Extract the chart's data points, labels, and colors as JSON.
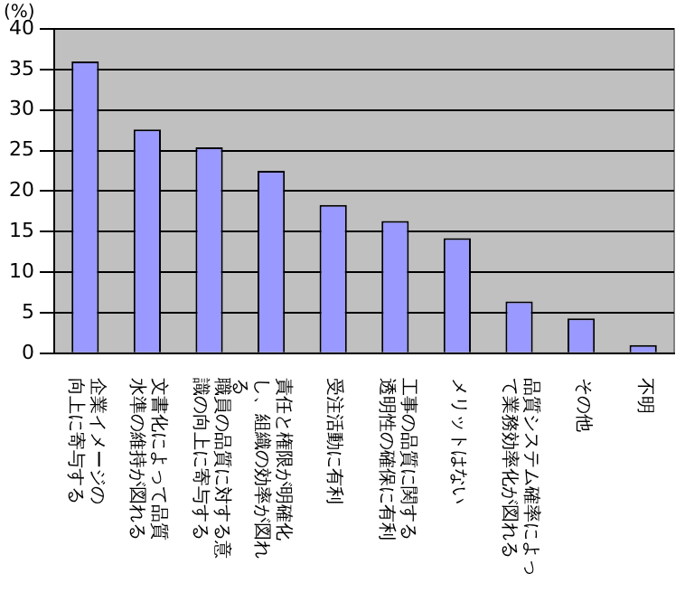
{
  "chart_data": {
    "type": "bar",
    "ylabel": "(%)",
    "categories": [
      "企業イメージの向上に寄与する",
      "文書化によって品質水準の維持が図れる",
      "職員の品質に対する意識の向上に寄与する",
      "責任と権限が明確化し、組織の効率が図れる",
      "受注活動に有利",
      "工事の品質に関する透明性の確保に有利",
      "メリットはない",
      "品質システム確率によって業務効率化が図れる",
      "その他",
      "不明"
    ],
    "values": [
      36.0,
      27.6,
      25.4,
      22.5,
      18.3,
      16.3,
      14.2,
      6.4,
      4.3,
      1.0
    ],
    "color": "#9999ff",
    "ylim": [
      0,
      40
    ],
    "yticks": [
      0,
      5,
      10,
      15,
      20,
      25,
      30,
      35,
      40
    ],
    "grid": "y"
  }
}
